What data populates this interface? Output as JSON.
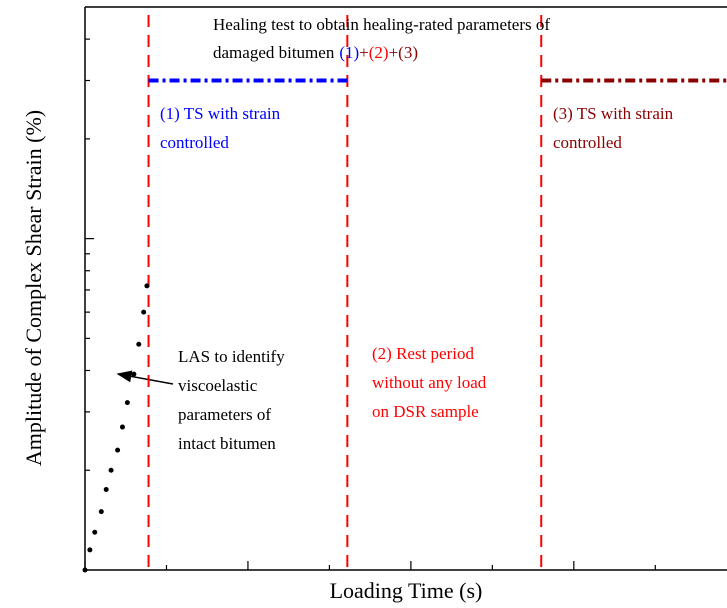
{
  "chart_data": {
    "type": "line",
    "xlabel": "Loading Time (s)",
    "ylabel": "Amplitude of Complex Shear Strain (%)",
    "xlim": [
      0,
      3.94
    ],
    "xticks": [
      0,
      0.5,
      1,
      1.5,
      2,
      2.5,
      3,
      3.5
    ],
    "ylim": [
      1,
      50
    ],
    "yscale": "log",
    "yticks": [
      2,
      3,
      4,
      5,
      6,
      7,
      8,
      9,
      10,
      20,
      30,
      40
    ],
    "series": [
      {
        "style": "dots",
        "color": "#000000",
        "x": [
          0,
          0.03,
          0.06,
          0.1,
          0.13,
          0.16,
          0.2,
          0.23,
          0.26,
          0.3,
          0.33,
          0.36,
          0.38
        ],
        "values": [
          1,
          1.15,
          1.3,
          1.5,
          1.75,
          2,
          2.3,
          2.7,
          3.2,
          3.9,
          4.8,
          6,
          7.2
        ]
      },
      {
        "style": "dashed",
        "color": "#0000ff",
        "x": [
          0.39,
          1.61
        ],
        "values": [
          30,
          30
        ]
      },
      {
        "style": "dashed",
        "color": "#8b0000",
        "x": [
          2.8,
          3.94
        ],
        "values": [
          30,
          30
        ]
      }
    ],
    "vlines": {
      "color": "#ff0000",
      "x": [
        0.39,
        1.61,
        2.8
      ]
    },
    "annotations": [
      {
        "color": "#000000",
        "lines": [
          "Healing test to obtain healing-rated parameters of"
        ]
      },
      {
        "color": "#000000",
        "parts": [
          {
            "text": "damaged bitumen",
            "color": "#000000"
          },
          {
            "text": "(1)",
            "color": "#0000ff"
          },
          {
            "text": "+",
            "color": "#8b0000"
          },
          {
            "text": "(2)",
            "color": "#ff0000"
          },
          {
            "text": "+",
            "color": "#8b0000"
          },
          {
            "text": "(3)",
            "color": "#8b0000"
          }
        ]
      },
      {
        "color": "#0000ff",
        "lines": [
          "(1) TS with strain",
          "controlled"
        ]
      },
      {
        "color": "#8b0000",
        "lines": [
          "(3) TS with strain",
          "controlled"
        ]
      },
      {
        "color": "#ff0000",
        "lines": [
          "(2) Rest period",
          "without any load",
          "on DSR sample"
        ]
      },
      {
        "color": "#000000",
        "lines": [
          "LAS to identify",
          " viscoelastic",
          "parameters of",
          "intact bitumen"
        ]
      }
    ]
  }
}
